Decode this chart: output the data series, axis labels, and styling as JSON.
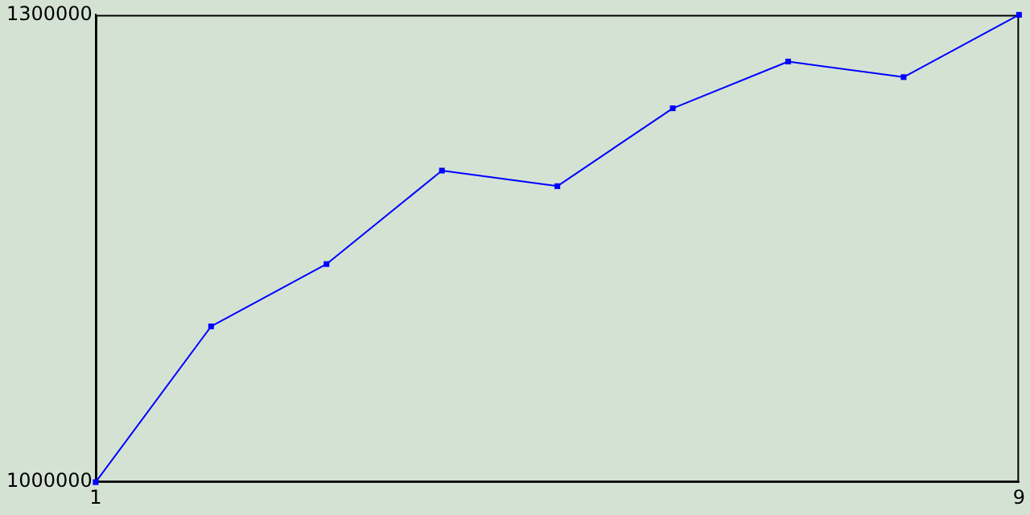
{
  "chart_data": {
    "type": "line",
    "x": [
      1,
      2,
      3,
      4,
      5,
      6,
      7,
      8,
      9
    ],
    "series": [
      {
        "color": "#0000ff",
        "values": [
          1000000,
          1100000,
          1140000,
          1200000,
          1190000,
          1240000,
          1270000,
          1260000,
          1300000
        ]
      }
    ],
    "xlim": [
      1,
      9
    ],
    "xticks": [
      1,
      9
    ],
    "ylim": [
      1000000,
      1300000
    ],
    "yticks": [
      1000000,
      1300000
    ],
    "grid": false,
    "legend": false,
    "marker": "square",
    "line_style": "solid"
  }
}
